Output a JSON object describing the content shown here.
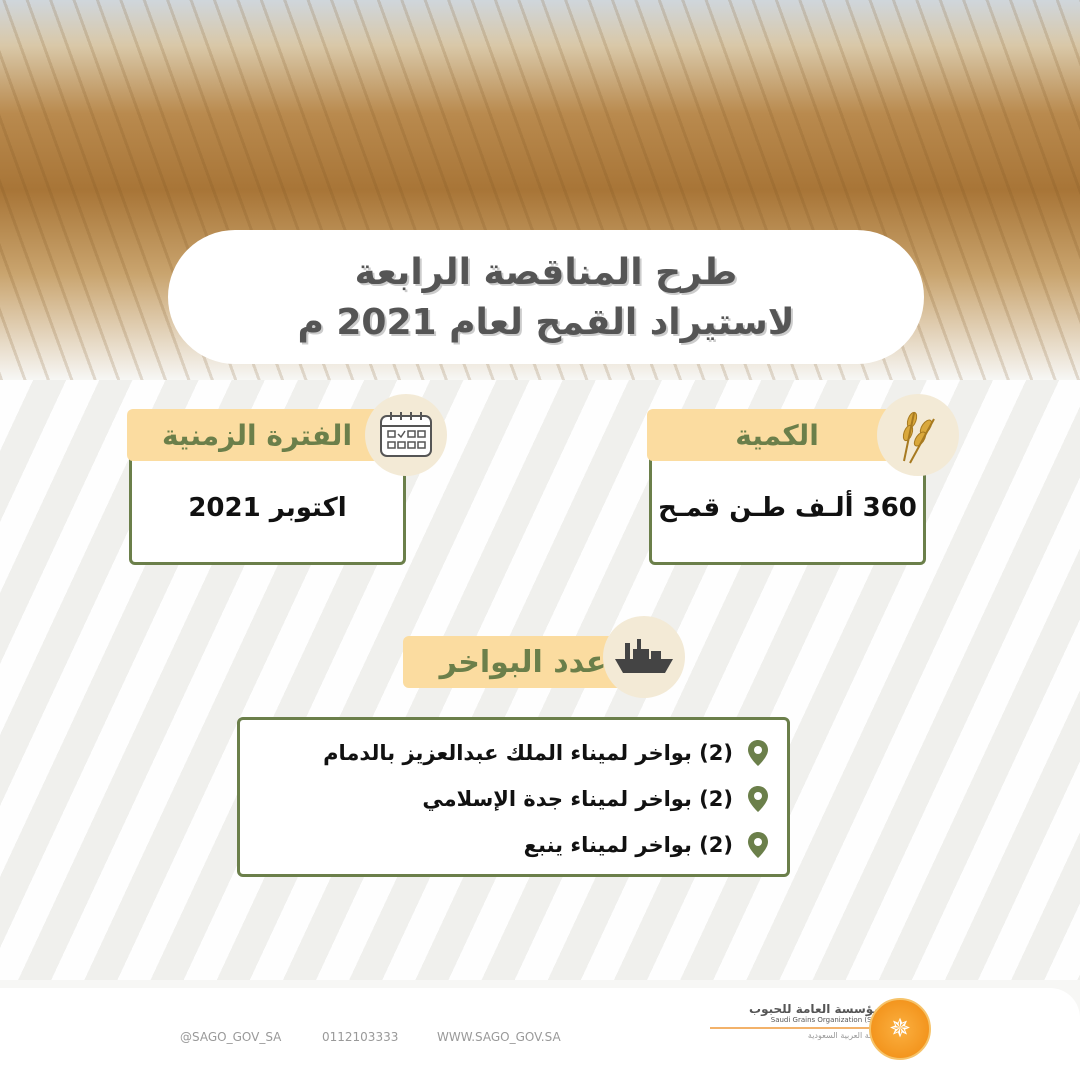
{
  "title": {
    "line1": "طرح المناقصة الرابعة",
    "line2": "لاستيراد القمح لعام 2021 م"
  },
  "period": {
    "label": "الفترة الزمنية",
    "value": "اكتوبر 2021",
    "icon": "calendar-icon"
  },
  "quantity": {
    "label": "الكمية",
    "value": "360 ألـف طـن قمـح",
    "icon": "wheat-icon"
  },
  "ships": {
    "label": "عدد البواخر",
    "icon": "ship-icon",
    "items": [
      "(2) بواخر لميناء الملك عبدالعزيز بالدمام",
      "(2) بواخر لميناء جدة الإسلامي",
      "(2) بواخر لميناء ينبع"
    ]
  },
  "footer": {
    "twitter": "@SAGO_GOV_SA",
    "phone": "0112103333",
    "website": "WWW.SAGO_GOV.SA",
    "logo": {
      "ar": "المؤسسة العامة للحبوب",
      "en": "Saudi Grains Organization (SAGO)",
      "country": "المملكة العربية السعودية"
    }
  },
  "colors": {
    "green": "#6b7f4a",
    "tag": "#fbdca0",
    "logo": "#f39a1e"
  }
}
